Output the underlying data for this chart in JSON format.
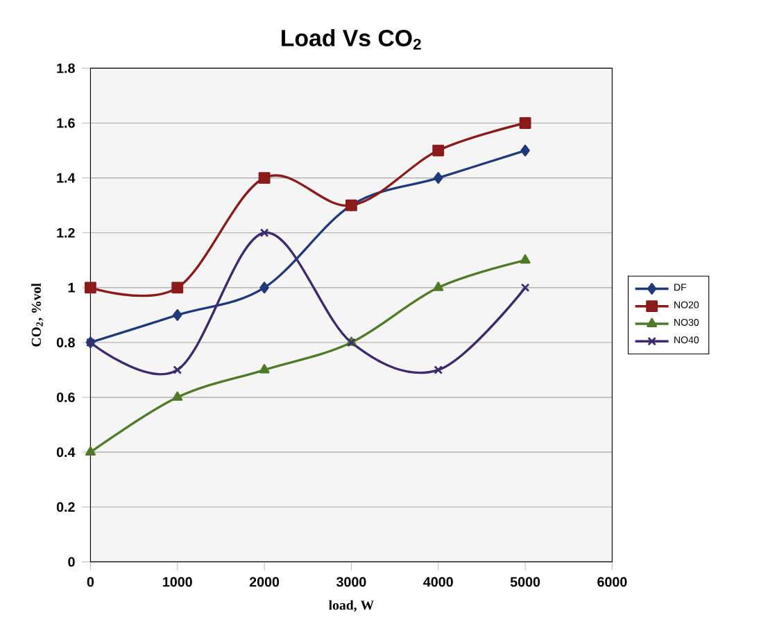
{
  "chart_data": {
    "type": "line",
    "title": "Load Vs CO$_{2}$",
    "xlabel": "load, W",
    "ylabel": "CO$_{2}$, %vol",
    "x": [
      0,
      1000,
      2000,
      3000,
      4000,
      5000
    ],
    "series": [
      {
        "name": "DF",
        "color": "#1f3a7a",
        "marker": "diamond",
        "values": [
          0.8,
          0.9,
          1.0,
          1.3,
          1.4,
          1.5
        ]
      },
      {
        "name": "NO20",
        "color": "#8b1a1a",
        "marker": "square",
        "values": [
          1.0,
          1.0,
          1.4,
          1.3,
          1.5,
          1.6
        ]
      },
      {
        "name": "NO30",
        "color": "#4f7a28",
        "marker": "triangle",
        "values": [
          0.4,
          0.6,
          0.7,
          0.8,
          1.0,
          1.1
        ]
      },
      {
        "name": "NO40",
        "color": "#3c2a6b",
        "marker": "cross",
        "values": [
          0.8,
          0.7,
          1.2,
          0.8,
          0.7,
          1.0
        ]
      }
    ],
    "xlim": [
      0,
      6000
    ],
    "xticks": [
      0,
      1000,
      2000,
      3000,
      4000,
      5000,
      6000
    ],
    "ylim": [
      0,
      1.8
    ],
    "yticks": [
      0,
      0.2,
      0.4,
      0.6,
      0.8,
      1,
      1.2,
      1.4,
      1.6,
      1.8
    ],
    "grid": "y",
    "legend": "right"
  }
}
